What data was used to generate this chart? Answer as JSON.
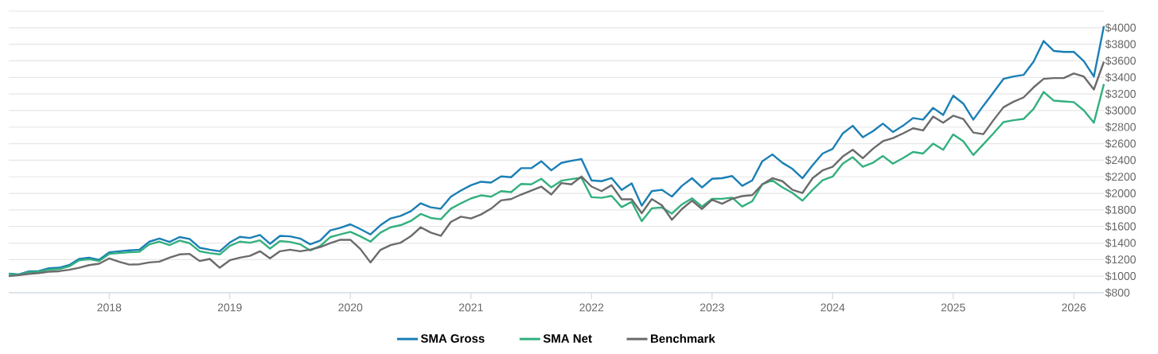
{
  "chart_data": {
    "type": "line",
    "x": [
      "2017-03",
      "2017-04",
      "2017-05",
      "2017-06",
      "2017-07",
      "2017-08",
      "2017-09",
      "2017-10",
      "2017-11",
      "2017-12",
      "2018-01",
      "2018-02",
      "2018-03",
      "2018-04",
      "2018-05",
      "2018-06",
      "2018-07",
      "2018-08",
      "2018-09",
      "2018-10",
      "2018-11",
      "2018-12",
      "2019-01",
      "2019-02",
      "2019-03",
      "2019-04",
      "2019-05",
      "2019-06",
      "2019-07",
      "2019-08",
      "2019-09",
      "2019-10",
      "2019-11",
      "2019-12",
      "2020-01",
      "2020-02",
      "2020-03",
      "2020-04",
      "2020-05",
      "2020-06",
      "2020-07",
      "2020-08",
      "2020-09",
      "2020-10",
      "2020-11",
      "2020-12",
      "2021-01",
      "2021-02",
      "2021-03",
      "2021-04",
      "2021-05",
      "2021-06",
      "2021-07",
      "2021-08",
      "2021-09",
      "2021-10",
      "2021-11",
      "2021-12",
      "2022-01",
      "2022-02",
      "2022-03",
      "2022-04",
      "2022-05",
      "2022-06",
      "2022-07",
      "2022-08",
      "2022-09",
      "2022-10",
      "2022-11",
      "2022-12",
      "2023-01",
      "2023-02",
      "2023-03",
      "2023-04",
      "2023-05",
      "2023-06",
      "2023-07",
      "2023-08",
      "2023-09",
      "2023-10",
      "2023-11",
      "2023-12",
      "2024-01",
      "2024-02",
      "2024-03",
      "2024-04",
      "2024-05",
      "2024-06",
      "2024-07",
      "2024-08",
      "2024-09",
      "2024-10",
      "2024-11",
      "2024-12",
      "2025-01",
      "2025-02",
      "2025-03",
      "2025-04",
      "2025-05",
      "2025-06",
      "2025-07",
      "2025-08",
      "2025-09",
      "2025-10",
      "2025-11",
      "2025-12",
      "2026-01",
      "2026-02",
      "2026-03",
      "2026-04"
    ],
    "series": [
      {
        "name": "SMA Gross",
        "color": "#1a7fb5",
        "values": [
          1031,
          1022,
          1057,
          1063,
          1096,
          1102,
          1134,
          1208,
          1224,
          1198,
          1289,
          1301,
          1311,
          1320,
          1417,
          1455,
          1414,
          1472,
          1449,
          1343,
          1320,
          1301,
          1407,
          1475,
          1462,
          1497,
          1391,
          1487,
          1481,
          1455,
          1385,
          1430,
          1552,
          1584,
          1626,
          1568,
          1504,
          1616,
          1697,
          1728,
          1783,
          1880,
          1831,
          1815,
          1960,
          2034,
          2098,
          2140,
          2130,
          2204,
          2195,
          2304,
          2304,
          2388,
          2278,
          2368,
          2393,
          2413,
          2156,
          2147,
          2185,
          2041,
          2121,
          1851,
          2027,
          2043,
          1961,
          2091,
          2183,
          2072,
          2176,
          2183,
          2209,
          2091,
          2157,
          2388,
          2470,
          2369,
          2295,
          2183,
          2340,
          2481,
          2537,
          2723,
          2816,
          2678,
          2749,
          2842,
          2741,
          2816,
          2909,
          2890,
          3032,
          2946,
          3180,
          3084,
          2890,
          3058,
          3218,
          3382,
          3411,
          3430,
          3590,
          3839,
          3720,
          3708,
          3708,
          3597,
          3411,
          4020
        ]
      },
      {
        "name": "SMA Net",
        "color": "#33b07e",
        "values": [
          1028,
          1015,
          1048,
          1054,
          1080,
          1086,
          1118,
          1192,
          1205,
          1183,
          1269,
          1279,
          1289,
          1295,
          1385,
          1417,
          1375,
          1430,
          1398,
          1301,
          1279,
          1263,
          1366,
          1417,
          1404,
          1433,
          1333,
          1424,
          1414,
          1385,
          1311,
          1366,
          1472,
          1504,
          1536,
          1481,
          1417,
          1526,
          1590,
          1616,
          1665,
          1751,
          1703,
          1687,
          1815,
          1880,
          1938,
          1976,
          1960,
          2027,
          2015,
          2114,
          2108,
          2176,
          2072,
          2153,
          2172,
          2188,
          1954,
          1947,
          1969,
          1834,
          1899,
          1665,
          1819,
          1830,
          1756,
          1867,
          1941,
          1841,
          1935,
          1935,
          1949,
          1841,
          1905,
          2109,
          2157,
          2072,
          2005,
          1912,
          2043,
          2157,
          2203,
          2359,
          2437,
          2321,
          2369,
          2451,
          2359,
          2425,
          2500,
          2481,
          2600,
          2526,
          2712,
          2630,
          2463,
          2593,
          2723,
          2860,
          2883,
          2898,
          3020,
          3224,
          3120,
          3110,
          3102,
          3002,
          2853,
          3320
        ]
      },
      {
        "name": "Benchmark",
        "color": "#6b6b6b",
        "values": [
          1000,
          1012,
          1028,
          1038,
          1054,
          1060,
          1077,
          1102,
          1134,
          1150,
          1215,
          1173,
          1140,
          1144,
          1166,
          1176,
          1224,
          1263,
          1269,
          1183,
          1208,
          1102,
          1192,
          1224,
          1246,
          1301,
          1215,
          1301,
          1320,
          1301,
          1320,
          1352,
          1398,
          1439,
          1439,
          1327,
          1166,
          1318,
          1375,
          1404,
          1481,
          1590,
          1526,
          1487,
          1655,
          1719,
          1697,
          1745,
          1815,
          1915,
          1931,
          1986,
          2034,
          2082,
          1986,
          2124,
          2108,
          2204,
          2082,
          2027,
          2098,
          1928,
          1928,
          1761,
          1931,
          1857,
          1681,
          1811,
          1912,
          1811,
          1923,
          1875,
          1935,
          1967,
          1979,
          2109,
          2183,
          2147,
          2043,
          2005,
          2183,
          2277,
          2321,
          2444,
          2526,
          2425,
          2537,
          2630,
          2667,
          2723,
          2786,
          2760,
          2928,
          2853,
          2938,
          2898,
          2734,
          2715,
          2883,
          3039,
          3106,
          3158,
          3280,
          3382,
          3392,
          3392,
          3448,
          3411,
          3254,
          3590
        ]
      }
    ],
    "xlim": [
      "2017-03",
      "2026-04"
    ],
    "xticks": [
      "2018",
      "2019",
      "2020",
      "2021",
      "2022",
      "2023",
      "2024",
      "2025",
      "2026"
    ],
    "ylim": [
      800,
      4200
    ],
    "yticks": [
      {
        "value": 800,
        "label": "$800"
      },
      {
        "value": 1000,
        "label": "$1000"
      },
      {
        "value": 1200,
        "label": "$1200"
      },
      {
        "value": 1400,
        "label": "$1400"
      },
      {
        "value": 1600,
        "label": "$1600"
      },
      {
        "value": 1800,
        "label": "$1800"
      },
      {
        "value": 2000,
        "label": "$2000"
      },
      {
        "value": 2200,
        "label": "$2200"
      },
      {
        "value": 2400,
        "label": "$2400"
      },
      {
        "value": 2600,
        "label": "$2600"
      },
      {
        "value": 2800,
        "label": "$2800"
      },
      {
        "value": 3000,
        "label": "$3000"
      },
      {
        "value": 3200,
        "label": "$3200"
      },
      {
        "value": 3400,
        "label": "$3400"
      },
      {
        "value": 3600,
        "label": "$3600"
      },
      {
        "value": 3800,
        "label": "$3800"
      },
      {
        "value": 4000,
        "label": "$4000"
      },
      {
        "value": 4200,
        "label": null
      }
    ],
    "grid": "y",
    "legend": "bottom",
    "line_style": "solid"
  }
}
